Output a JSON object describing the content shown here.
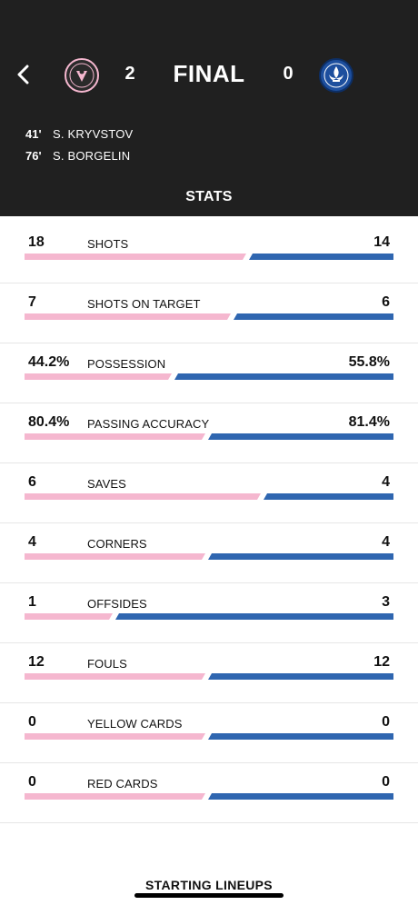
{
  "header": {
    "home_score": "2",
    "away_score": "0",
    "status": "FINAL",
    "home_crest_icon": "inter-miami-crest-icon",
    "away_crest_icon": "cf-montreal-crest-icon",
    "colors": {
      "background": "#202020",
      "home": "#f5b7cf",
      "away": "#2f66b0"
    }
  },
  "goals": [
    {
      "minute": "41'",
      "scorer": "S. KRYVSTOV"
    },
    {
      "minute": "76'",
      "scorer": "S. BORGELIN"
    }
  ],
  "section_title": "STATS",
  "stats": [
    {
      "label": "SHOTS",
      "home": "18",
      "away": "14",
      "home_share": 0.6
    },
    {
      "label": "SHOTS ON TARGET",
      "home": "7",
      "away": "6",
      "home_share": 0.56
    },
    {
      "label": "POSSESSION",
      "home": "44.2%",
      "away": "55.8%",
      "home_share": 0.4
    },
    {
      "label": "PASSING ACCURACY",
      "home": "80.4%",
      "away": "81.4%",
      "home_share": 0.49
    },
    {
      "label": "SAVES",
      "home": "6",
      "away": "4",
      "home_share": 0.64
    },
    {
      "label": "CORNERS",
      "home": "4",
      "away": "4",
      "home_share": 0.49
    },
    {
      "label": "OFFSIDES",
      "home": "1",
      "away": "3",
      "home_share": 0.24
    },
    {
      "label": "FOULS",
      "home": "12",
      "away": "12",
      "home_share": 0.49
    },
    {
      "label": "YELLOW CARDS",
      "home": "0",
      "away": "0",
      "home_share": 0.49
    },
    {
      "label": "RED CARDS",
      "home": "0",
      "away": "0",
      "home_share": 0.49
    }
  ],
  "footer": {
    "lineups_label": "STARTING LINEUPS"
  }
}
